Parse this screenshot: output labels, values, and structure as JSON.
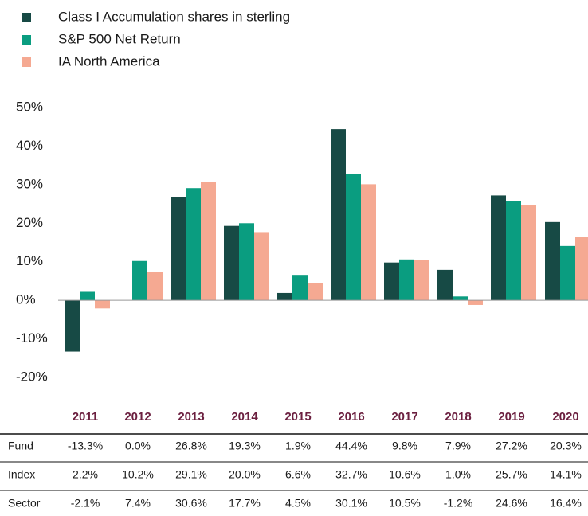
{
  "chart_data": {
    "type": "bar",
    "categories": [
      "2011",
      "2012",
      "2013",
      "2014",
      "2015",
      "2016",
      "2017",
      "2018",
      "2019",
      "2020"
    ],
    "series": [
      {
        "name": "Class I Accumulation shares in sterling",
        "table_label": "Fund",
        "color": "#174a45",
        "values": [
          -13.3,
          0,
          26.8,
          19.3,
          1.9,
          44.4,
          9.8,
          7.9,
          27.2,
          20.3
        ],
        "value_labels": [
          "-13.3%",
          "0.0%",
          "26.8%",
          "19.3%",
          "1.9%",
          "44.4%",
          "9.8%",
          "7.9%",
          "27.2%",
          "20.3%"
        ]
      },
      {
        "name": "S&P 500 Net Return",
        "table_label": "Index",
        "color": "#0a9d80",
        "values": [
          2.2,
          10.2,
          29.1,
          20.0,
          6.6,
          32.7,
          10.6,
          1.0,
          25.7,
          14.1
        ],
        "value_labels": [
          "2.2%",
          "10.2%",
          "29.1%",
          "20.0%",
          "6.6%",
          "32.7%",
          "10.6%",
          "1.0%",
          "25.7%",
          "14.1%"
        ]
      },
      {
        "name": "IA North America",
        "table_label": "Sector",
        "color": "#f5a992",
        "values": [
          -2.1,
          7.4,
          30.6,
          17.7,
          4.5,
          30.1,
          10.5,
          -1.2,
          24.6,
          16.4
        ],
        "value_labels": [
          "-2.1%",
          "7.4%",
          "30.6%",
          "17.7%",
          "4.5%",
          "30.1%",
          "10.5%",
          "-1.2%",
          "24.6%",
          "16.4%"
        ]
      }
    ],
    "ylim": [
      -20,
      50
    ],
    "yticks": [
      {
        "value": 50,
        "label": "50%"
      },
      {
        "value": 40,
        "label": "40%"
      },
      {
        "value": 30,
        "label": "30%"
      },
      {
        "value": 20,
        "label": "20%"
      },
      {
        "value": 10,
        "label": "10%"
      },
      {
        "value": 0,
        "label": "0%"
      },
      {
        "value": -10,
        "label": "-10%"
      },
      {
        "value": -20,
        "label": "-20%"
      }
    ],
    "legend": "top-left"
  }
}
